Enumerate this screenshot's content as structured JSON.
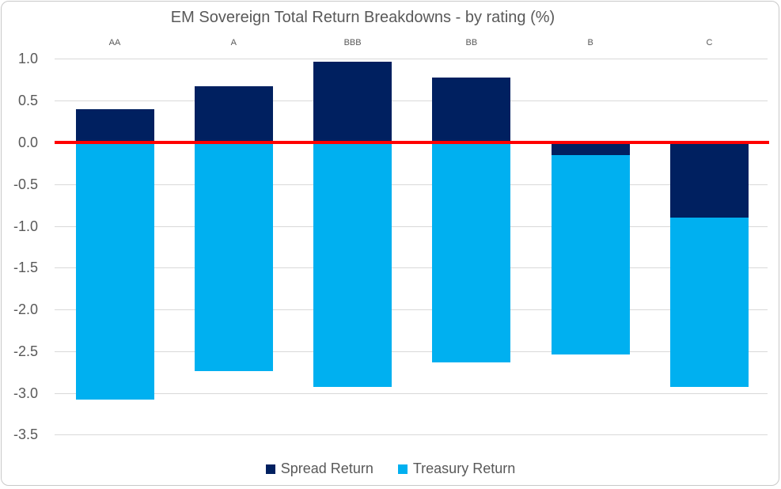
{
  "chart_data": {
    "type": "bar",
    "stacked": true,
    "title": "EM Sovereign Total Return Breakdowns - by rating (%)",
    "categories": [
      "AA",
      "A",
      "BBB",
      "BB",
      "B",
      "C"
    ],
    "series": [
      {
        "name": "Spread Return",
        "color": "#002060",
        "values": [
          0.4,
          0.67,
          0.97,
          0.78,
          -0.15,
          -0.9
        ]
      },
      {
        "name": "Treasury Return",
        "color": "#00B0F0",
        "values": [
          -3.08,
          -2.74,
          -2.93,
          -2.63,
          -2.39,
          -2.03
        ]
      }
    ],
    "y_axis": {
      "min": -3.5,
      "max": 1.0,
      "step": 0.5,
      "tick_labels": [
        "1.0",
        "0.5",
        "0.0",
        "-0.5",
        "-1.0",
        "-1.5",
        "-2.0",
        "-2.5",
        "-3.0",
        "-3.5"
      ]
    },
    "zero_line": {
      "value": 0.0,
      "color": "#FF0000"
    },
    "colors": {
      "gridline": "#D9D9D9",
      "text": "#595959",
      "border": "#C9C9C9"
    },
    "grid": "horizontal",
    "legend_position": "bottom"
  }
}
